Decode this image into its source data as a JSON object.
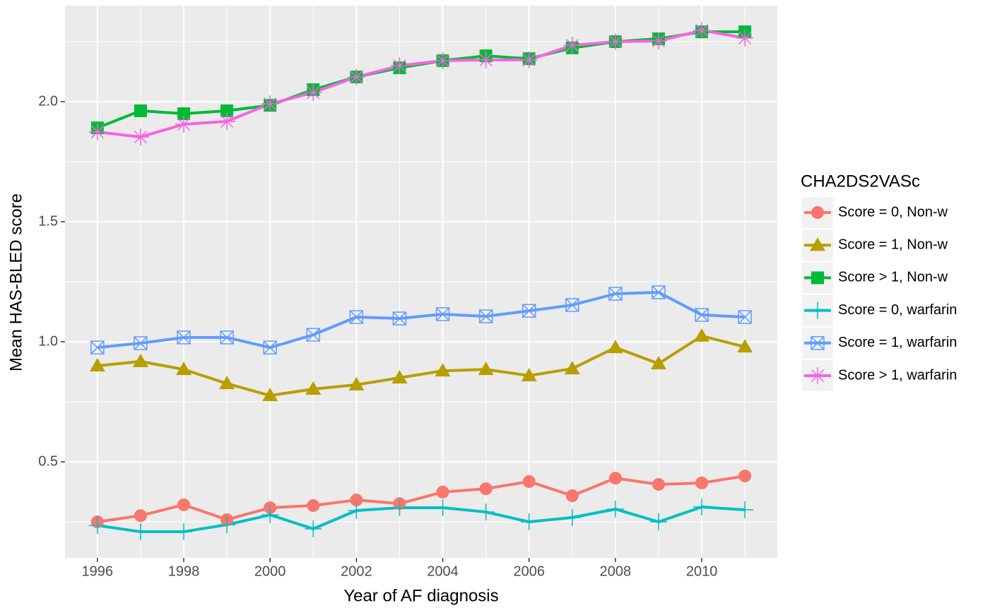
{
  "chart_data": {
    "type": "line",
    "xlabel": "Year of AF diagnosis",
    "ylabel": "Mean HAS-BLED score",
    "legend_title": "CHA2DS2VASc",
    "legend": "right",
    "grid": true,
    "x": [
      1996,
      1997,
      1998,
      1999,
      2000,
      2001,
      2002,
      2003,
      2004,
      2005,
      2006,
      2007,
      2008,
      2009,
      2010,
      2011
    ],
    "xlim": [
      1995.25,
      2011.75
    ],
    "xticks": [
      1996,
      1998,
      2000,
      2002,
      2004,
      2006,
      2008,
      2010
    ],
    "ylim": [
      0.1,
      2.4
    ],
    "yticks": [
      0.5,
      {
        "value": 1,
        "label": "1.0"
      },
      1.5,
      {
        "value": 2,
        "label": "2.0"
      }
    ],
    "series": [
      {
        "name": "Score = 0, Non-w",
        "color": "#F8766D",
        "marker": "circle",
        "values": [
          0.25,
          0.276,
          0.321,
          0.259,
          0.309,
          0.318,
          0.341,
          0.326,
          0.374,
          0.388,
          0.418,
          0.359,
          0.432,
          0.406,
          0.412,
          0.441
        ]
      },
      {
        "name": "Score = 1, Non-w",
        "color": "#B79F00",
        "marker": "triangle",
        "values": [
          0.9,
          0.918,
          0.885,
          0.826,
          0.776,
          0.803,
          0.821,
          0.85,
          0.879,
          0.885,
          0.859,
          0.888,
          0.976,
          0.909,
          1.024,
          0.979
        ]
      },
      {
        "name": "Score > 1, Non-w",
        "color": "#00BA38",
        "marker": "square",
        "values": [
          1.891,
          1.962,
          1.95,
          1.962,
          1.985,
          2.05,
          2.103,
          2.141,
          2.171,
          2.191,
          2.179,
          2.224,
          2.25,
          2.262,
          2.291,
          2.291
        ]
      },
      {
        "name": "Score = 0, warfarin",
        "color": "#00BFC4",
        "marker": "plus",
        "values": [
          0.235,
          0.209,
          0.209,
          0.238,
          0.279,
          0.221,
          0.297,
          0.309,
          0.309,
          0.291,
          0.25,
          0.268,
          0.303,
          0.25,
          0.312,
          0.3
        ]
      },
      {
        "name": "Score = 1, warfarin",
        "color": "#619CFF",
        "marker": "boxx",
        "values": [
          0.976,
          0.994,
          1.018,
          1.018,
          0.976,
          1.029,
          1.103,
          1.097,
          1.115,
          1.106,
          1.129,
          1.153,
          1.2,
          1.206,
          1.112,
          1.103
        ]
      },
      {
        "name": "Score > 1, warfarin",
        "color": "#F564E3",
        "marker": "asterisk",
        "values": [
          1.874,
          1.853,
          1.906,
          1.918,
          1.991,
          2.038,
          2.103,
          2.15,
          2.171,
          2.174,
          2.174,
          2.235,
          2.25,
          2.253,
          2.297,
          2.265
        ]
      }
    ]
  }
}
